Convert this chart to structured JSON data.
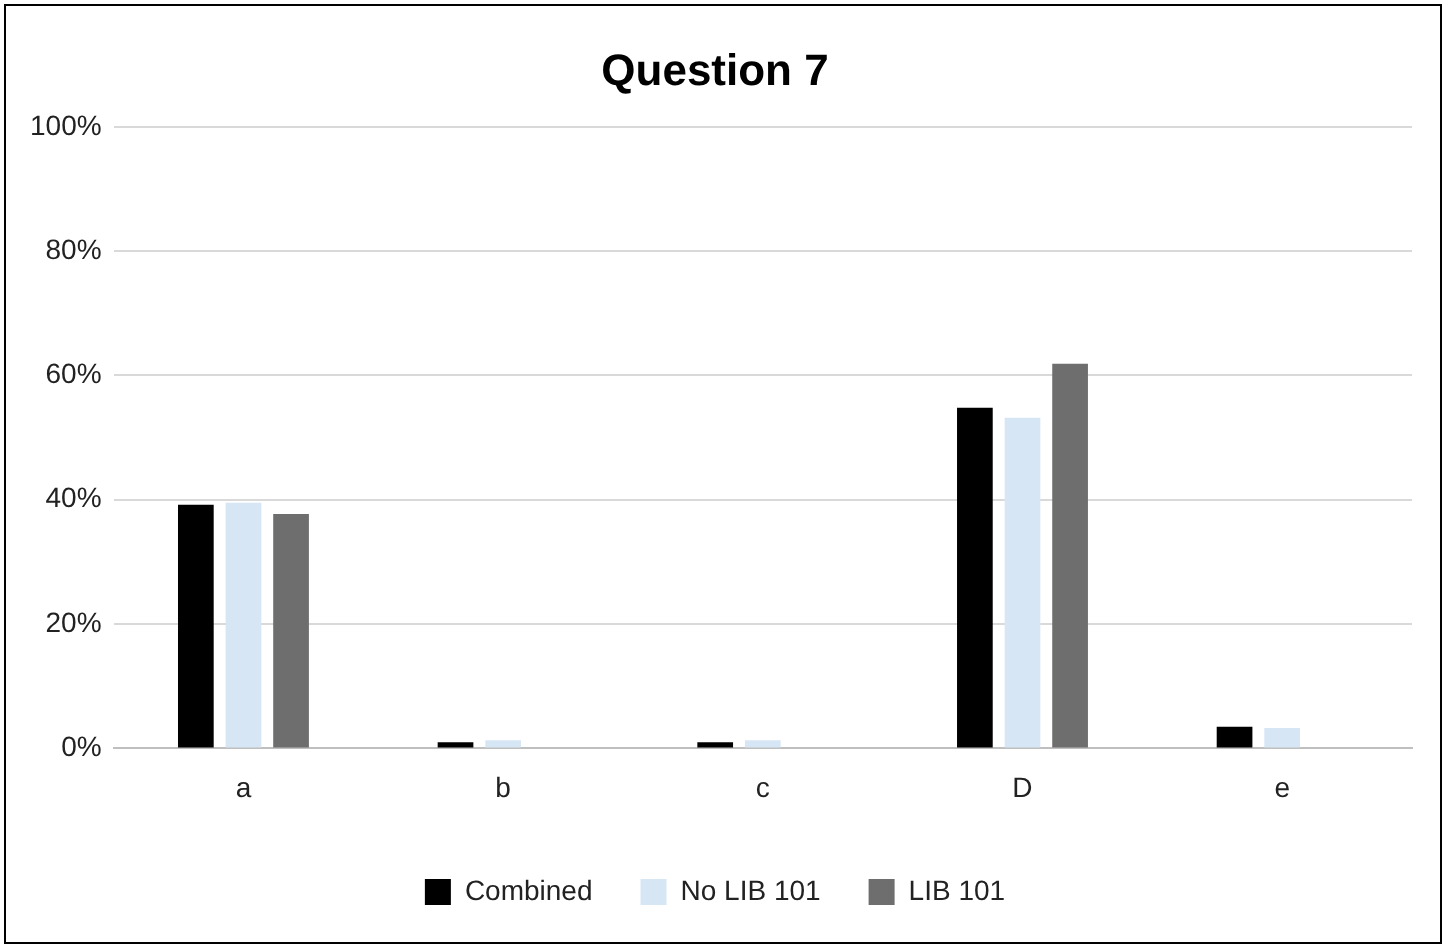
{
  "chart_data": {
    "type": "bar",
    "title": "Question 7",
    "categories": [
      "a",
      "b",
      "c",
      "D",
      "e"
    ],
    "series": [
      {
        "name": "Combined",
        "color": "#000000",
        "values": [
          39.2,
          1,
          1,
          54.8,
          3.5
        ]
      },
      {
        "name": "No LIB 101",
        "color": "#d6e6f5",
        "values": [
          39.5,
          1.3,
          1.3,
          53.2,
          3.3
        ]
      },
      {
        "name": "LIB 101",
        "color": "#6e6e6e",
        "values": [
          37.7,
          0,
          0,
          61.9,
          0
        ]
      }
    ],
    "ylim": [
      0,
      100
    ],
    "yticks": [
      {
        "value": 0,
        "label": "0%"
      },
      {
        "value": 20,
        "label": "20%"
      },
      {
        "value": 40,
        "label": "40%"
      },
      {
        "value": 60,
        "label": "60%"
      },
      {
        "value": 80,
        "label": "80%"
      },
      {
        "value": 100,
        "label": "100%"
      }
    ],
    "grid": "y",
    "legend": "bottom"
  }
}
